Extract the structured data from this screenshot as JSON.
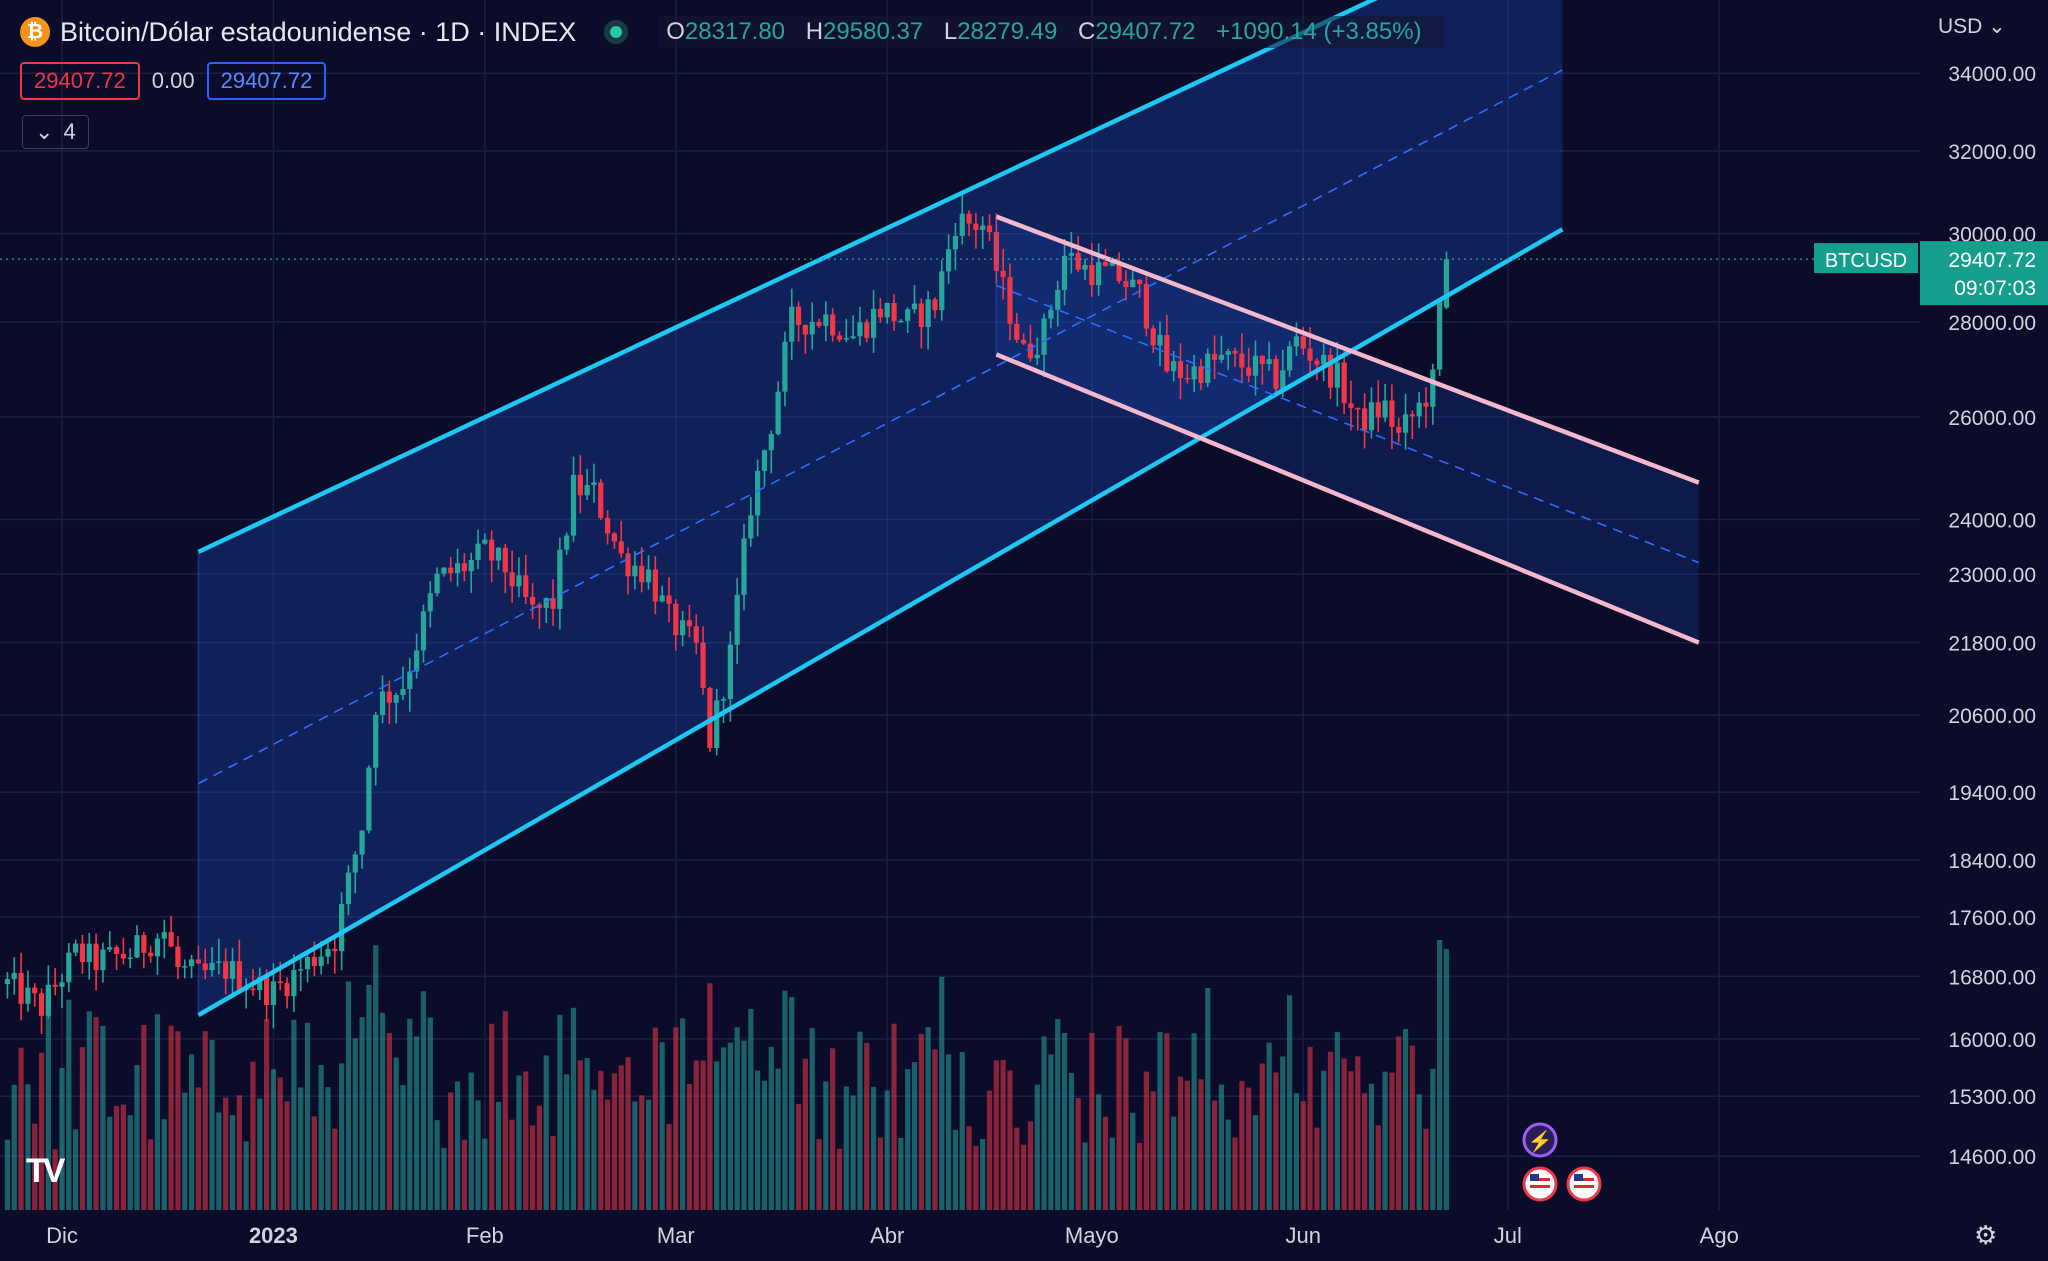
{
  "header": {
    "title": "Bitcoin/Dólar estadounidense · 1D · INDEX",
    "ohlc": [
      {
        "k": "O",
        "v": "28317.80"
      },
      {
        "k": "H",
        "v": "29580.37"
      },
      {
        "k": "L",
        "v": "28279.49"
      },
      {
        "k": "C",
        "v": "29407.72"
      },
      {
        "k": "",
        "v": "+1090.14 (+3.85%)"
      }
    ],
    "sell_price": "29407.72",
    "spread": "0.00",
    "buy_price": "29407.72",
    "indicators_count": "4",
    "currency": "USD"
  },
  "colors": {
    "background": "#0b0c2a",
    "up": "#26a69a",
    "down": "#f23645",
    "channel_blue": "#1ec8f5",
    "channel_pink": "#f4b8cc"
  },
  "chart_data": {
    "type": "candlestick",
    "symbol_label": "BTCUSD",
    "last_price": "29407.72",
    "countdown": "09:07:03",
    "y_scale": "log",
    "y_range": [
      14000,
      36000
    ],
    "y_ticks": [
      34000,
      32000,
      30000,
      28000,
      26000,
      24000,
      23000,
      21800,
      20600,
      19400,
      18400,
      17600,
      16800,
      16000,
      15300,
      14600
    ],
    "y_tick_labels": [
      "34000.00",
      "32000.00",
      "30000.00",
      "28000.00",
      "26000.00",
      "24000.00",
      "23000.00",
      "21800.00",
      "20600.00",
      "19400.00",
      "18400.00",
      "17600.00",
      "16800.00",
      "16000.00",
      "15300.00",
      "14600.00"
    ],
    "x_ticks": [
      {
        "label": "Dic",
        "day": 0
      },
      {
        "label": "2023",
        "day": 31
      },
      {
        "label": "Feb",
        "day": 62
      },
      {
        "label": "Mar",
        "day": 90
      },
      {
        "label": "Abr",
        "day": 121
      },
      {
        "label": "Mayo",
        "day": 151
      },
      {
        "label": "Jun",
        "day": 182
      },
      {
        "label": "Jul",
        "day": 212
      },
      {
        "label": "Ago",
        "day": 243
      }
    ],
    "anchors": [
      [
        -8,
        16700
      ],
      [
        -3,
        16400
      ],
      [
        2,
        17100
      ],
      [
        5,
        17000
      ],
      [
        10,
        17100
      ],
      [
        15,
        17400
      ],
      [
        17,
        16900
      ],
      [
        20,
        16800
      ],
      [
        24,
        16900
      ],
      [
        28,
        16700
      ],
      [
        31,
        16600
      ],
      [
        35,
        16900
      ],
      [
        40,
        17300
      ],
      [
        44,
        18900
      ],
      [
        46,
        20800
      ],
      [
        50,
        21100
      ],
      [
        55,
        22900
      ],
      [
        60,
        23200
      ],
      [
        62,
        23400
      ],
      [
        65,
        23100
      ],
      [
        69,
        22300
      ],
      [
        72,
        22500
      ],
      [
        75,
        24600
      ],
      [
        78,
        24500
      ],
      [
        82,
        23300
      ],
      [
        86,
        23000
      ],
      [
        89,
        22200
      ],
      [
        93,
        21700
      ],
      [
        95,
        20200
      ],
      [
        98,
        21600
      ],
      [
        101,
        24300
      ],
      [
        104,
        25900
      ],
      [
        107,
        28000
      ],
      [
        112,
        28100
      ],
      [
        116,
        27700
      ],
      [
        120,
        28300
      ],
      [
        124,
        28000
      ],
      [
        128,
        28400
      ],
      [
        131,
        30300
      ],
      [
        135,
        30200
      ],
      [
        138,
        28700
      ],
      [
        141,
        27300
      ],
      [
        144,
        27800
      ],
      [
        147,
        29500
      ],
      [
        150,
        29200
      ],
      [
        155,
        29000
      ],
      [
        158,
        28600
      ],
      [
        162,
        27000
      ],
      [
        165,
        26900
      ],
      [
        170,
        27200
      ],
      [
        175,
        27000
      ],
      [
        178,
        26800
      ],
      [
        181,
        27600
      ],
      [
        184,
        27200
      ],
      [
        187,
        26800
      ],
      [
        190,
        25900
      ],
      [
        194,
        26200
      ],
      [
        196,
        25600
      ],
      [
        199,
        26200
      ],
      [
        201,
        26700
      ],
      [
        202,
        28300
      ],
      [
        203,
        29400
      ]
    ],
    "channels": [
      {
        "color": "#1ec8f5",
        "upper": [
          [
            20,
            23400
          ],
          [
            220,
            38600
          ]
        ],
        "lower": [
          [
            20,
            16300
          ],
          [
            220,
            30100
          ]
        ],
        "fill": "rgba(27,78,190,0.32)"
      },
      {
        "color": "#f4b8cc",
        "upper": [
          [
            137,
            30400
          ],
          [
            240,
            24700
          ]
        ],
        "lower": [
          [
            137,
            27300
          ],
          [
            240,
            21800
          ]
        ],
        "fill": "rgba(27,78,190,0.22)"
      }
    ]
  },
  "footer": {
    "settings_icon": "gear-icon",
    "logo": "tradingview-logo"
  }
}
